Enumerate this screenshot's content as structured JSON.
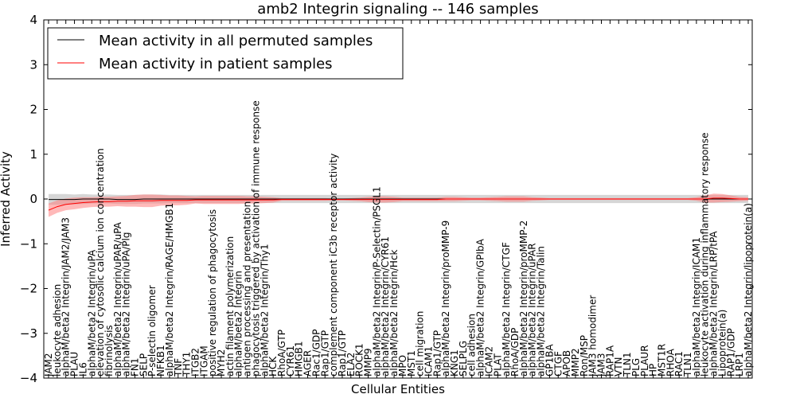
{
  "chart_data": {
    "type": "line",
    "title": "amb2 Integrin signaling -- 146 samples",
    "xlabel": "Cellular Entities",
    "ylabel": "Inferred Activity",
    "ylim": [
      -4,
      4
    ],
    "yticks": [
      "4",
      "3",
      "2",
      "1",
      "0",
      "−1",
      "−2",
      "−3",
      "−4"
    ],
    "grid": false,
    "legend_position": "top-left",
    "colors": {
      "permuted": "#000000",
      "patient": "#ff0000",
      "permuted_band": "#c8c8c8",
      "patient_band": "#ff8080"
    },
    "categories": [
      "JAM2",
      "leukocyte adhesion",
      "alphaM/beta2 Integrin/JAM2/JAM3",
      "PLAU",
      "IL6",
      "alphaM/beta2 Integrin/uPA",
      "elevation of cytosolic calcium ion concentration",
      "fibrinolysis",
      "alphaM/beta2 Integrin/uPAR/uPA",
      "alphaM/beta2 Integrin/uPA/Plg",
      "FN1",
      "SELP",
      "P-selectin oligomer",
      "NFKB1",
      "alphaM/beta2 Integrin/RAGE/HMGB1",
      "TNF",
      "THY1",
      "ITGB2",
      "ITGAM",
      "positive regulation of phagocytosis",
      "MYH2",
      "actin filament polymerization",
      "alphaM/beta2 Integrin",
      "antigen processing and presentation",
      "phagocytosis triggered by activation of immune response",
      "alphaM/beta2 Integrin/Thy1",
      "HCK",
      "RhoA/GTP",
      "CYR61",
      "HMGB1",
      "AGER",
      "Rac1/GDP",
      "Rap1/GTP",
      "complement component iC3b receptor activity",
      "Rap1/GTP",
      "ELA2",
      "ROCK1",
      "MMP9",
      "alphaM/beta2 Integrin/P-Selectin/PSGL1",
      "alphaM/beta2 Integrin/CYR61",
      "alphaM/beta2 Integrin/Hck",
      "MPO",
      "MST1",
      "cell migration",
      "ICAM1",
      "Rap1/GTP",
      "alphaM/beta2 Integrin/proMMP-9",
      "KNG1",
      "SELPLG",
      "cell adhesion",
      "alphaM/beta2 Integrin/GPIbA",
      "ICAM2",
      "PLAT",
      "alphaM/beta2 Integrin/CTGF",
      "RhoA/GDP",
      "alphaM/beta2 Integrin/proMMP-2",
      "alphaM/beta2 Integrin/uPAR",
      "alphaM/beta2 Integrin/Talin",
      "GP1BA",
      "CTGF",
      "APOB",
      "MMP2",
      "Ron/MSP",
      "JAM3 homodimer",
      "JAM3",
      "RAP1A",
      "VTN",
      "TLN1",
      "PLG",
      "PLAUR",
      "HP",
      "MST1R",
      "RHOA",
      "RAC1",
      "TLN1",
      "alphaM/beta2 Integrin/ICAM1",
      "leukocyte activation during inflammatory response",
      "alphaM/beta2 Integrin/LRP/tPA",
      "Lipoprotein(a)",
      "RAP1/GDP",
      "LRP1",
      "alphaM/beta2 Integrin/lipoprotein(a)"
    ],
    "series": [
      {
        "name": "Mean activity in all permuted samples",
        "values": [
          -0.01,
          -0.01,
          -0.01,
          -0.01,
          0.0,
          0.0,
          0.0,
          0.0,
          -0.01,
          -0.01,
          -0.01,
          0.0,
          0.0,
          0.0,
          0.0,
          0.0,
          0.0,
          0.0,
          0.0,
          0.0,
          0.0,
          0.0,
          0.0,
          0.0,
          0.0,
          0.0,
          0.0,
          0.0,
          0.0,
          0.0,
          0.0,
          0.0,
          0.0,
          0.0,
          0.0,
          0.0,
          0.0,
          0.0,
          0.0,
          0.0,
          0.0,
          0.0,
          0.0,
          0.0,
          0.0,
          0.0,
          0.0,
          0.0,
          0.0,
          0.0,
          0.0,
          0.0,
          0.0,
          0.0,
          0.0,
          0.0,
          0.0,
          0.0,
          0.0,
          0.0,
          0.0,
          0.0,
          0.0,
          0.0,
          0.0,
          0.0,
          0.0,
          0.0,
          0.0,
          0.0,
          0.0,
          0.0,
          0.0,
          0.0,
          0.0,
          0.0,
          0.0,
          0.0,
          0.0,
          0.0,
          0.0,
          0.0
        ],
        "band": [
          0.12,
          0.12,
          0.12,
          0.11,
          0.11,
          0.1,
          0.1,
          0.1,
          0.1,
          0.1,
          0.1,
          0.1,
          0.1,
          0.1,
          0.09,
          0.09,
          0.09,
          0.09,
          0.09,
          0.09,
          0.09,
          0.09,
          0.09,
          0.09,
          0.09,
          0.09,
          0.09,
          0.09,
          0.09,
          0.09,
          0.09,
          0.09,
          0.09,
          0.09,
          0.09,
          0.09,
          0.09,
          0.09,
          0.09,
          0.09,
          0.09,
          0.09,
          0.09,
          0.09,
          0.09,
          0.09,
          0.09,
          0.09,
          0.09,
          0.09,
          0.09,
          0.09,
          0.09,
          0.09,
          0.09,
          0.09,
          0.09,
          0.09,
          0.09,
          0.09,
          0.09,
          0.09,
          0.09,
          0.09,
          0.09,
          0.09,
          0.09,
          0.09,
          0.09,
          0.09,
          0.09,
          0.09,
          0.09,
          0.09,
          0.09,
          0.09,
          0.09,
          0.09,
          0.09,
          0.09,
          0.09,
          0.09
        ]
      },
      {
        "name": "Mean activity in patient samples",
        "values": [
          -0.25,
          -0.17,
          -0.12,
          -0.1,
          -0.08,
          -0.07,
          -0.06,
          -0.06,
          -0.05,
          -0.05,
          -0.04,
          -0.04,
          -0.04,
          -0.03,
          -0.03,
          -0.03,
          -0.03,
          -0.02,
          -0.02,
          -0.02,
          -0.02,
          -0.02,
          -0.02,
          -0.02,
          -0.02,
          -0.02,
          -0.02,
          -0.01,
          -0.01,
          -0.01,
          -0.01,
          -0.01,
          -0.01,
          -0.01,
          -0.01,
          -0.01,
          -0.01,
          -0.01,
          -0.01,
          -0.01,
          -0.01,
          -0.01,
          -0.01,
          -0.01,
          -0.01,
          -0.01,
          0.0,
          0.0,
          0.0,
          0.0,
          0.0,
          0.0,
          0.0,
          0.0,
          0.0,
          0.0,
          0.0,
          0.0,
          0.0,
          0.0,
          0.0,
          0.0,
          0.0,
          0.0,
          0.0,
          0.0,
          0.0,
          0.0,
          0.0,
          0.0,
          0.0,
          0.0,
          0.0,
          0.0,
          0.0,
          0.0,
          0.0,
          0.02,
          0.02,
          0.01,
          0.0,
          0.0
        ],
        "band": [
          0.15,
          0.14,
          0.13,
          0.13,
          0.12,
          0.11,
          0.11,
          0.11,
          0.11,
          0.12,
          0.13,
          0.14,
          0.14,
          0.12,
          0.11,
          0.11,
          0.1,
          0.08,
          0.09,
          0.09,
          0.09,
          0.09,
          0.09,
          0.08,
          0.08,
          0.07,
          0.06,
          0.03,
          0.03,
          0.03,
          0.03,
          0.03,
          0.03,
          0.02,
          0.02,
          0.03,
          0.04,
          0.06,
          0.07,
          0.07,
          0.06,
          0.04,
          0.04,
          0.04,
          0.04,
          0.04,
          0.05,
          0.05,
          0.04,
          0.03,
          0.03,
          0.04,
          0.05,
          0.06,
          0.06,
          0.06,
          0.04,
          0.03,
          0.02,
          0.02,
          0.02,
          0.02,
          0.02,
          0.02,
          0.02,
          0.02,
          0.02,
          0.02,
          0.02,
          0.02,
          0.02,
          0.02,
          0.02,
          0.02,
          0.02,
          0.04,
          0.08,
          0.1,
          0.09,
          0.07,
          0.05,
          0.04
        ]
      }
    ]
  }
}
